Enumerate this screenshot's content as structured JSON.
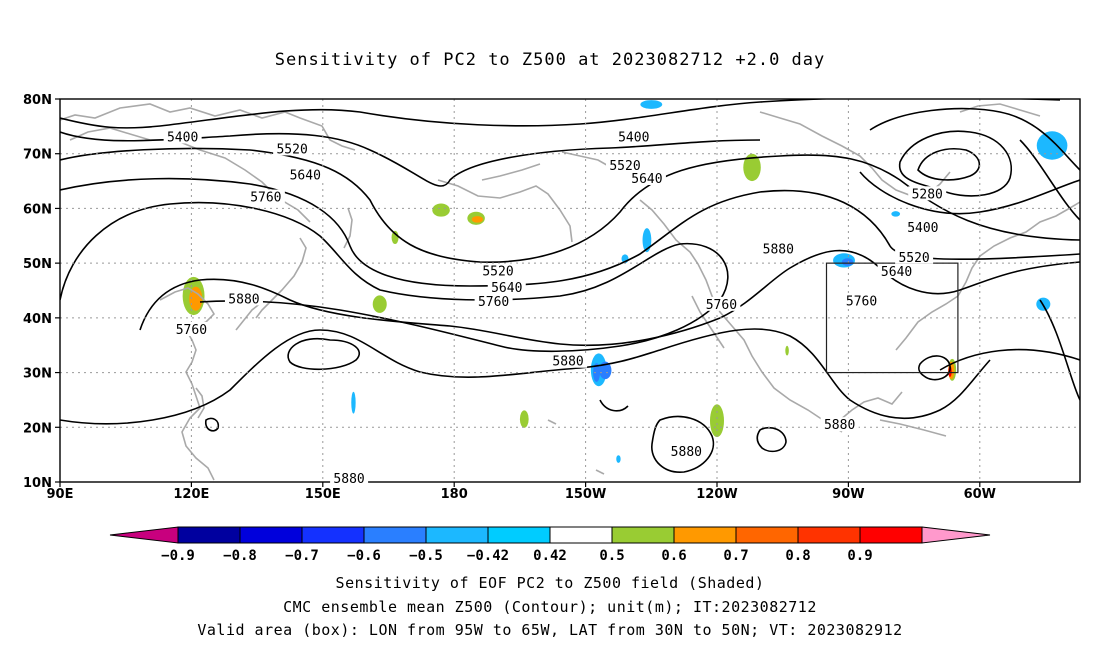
{
  "title": "Sensitivity of PC2 to Z500 at 2023082712 +2.0 day",
  "axes": {
    "lat_ticks": [
      "80N",
      "70N",
      "60N",
      "50N",
      "40N",
      "30N",
      "20N",
      "10N"
    ],
    "lon_ticks": [
      "90E",
      "120E",
      "150E",
      "180",
      "150W",
      "120W",
      "90W",
      "60W"
    ]
  },
  "contour_labels": [
    {
      "value": "5400",
      "lon": 118,
      "lat": 72.8
    },
    {
      "value": "5400",
      "lon": 221,
      "lat": 72.8
    },
    {
      "value": "5520",
      "lon": 143,
      "lat": 70.6
    },
    {
      "value": "5520",
      "lon": 219,
      "lat": 67.6
    },
    {
      "value": "5640",
      "lon": 146,
      "lat": 65.8
    },
    {
      "value": "5640",
      "lon": 224,
      "lat": 65.2
    },
    {
      "value": "5760",
      "lon": 137,
      "lat": 61.8
    },
    {
      "value": "5520",
      "lon": 190,
      "lat": 48.3
    },
    {
      "value": "5640",
      "lon": 192,
      "lat": 45.3
    },
    {
      "value": "5760",
      "lon": 189,
      "lat": 42.7
    },
    {
      "value": "5880",
      "lon": 132,
      "lat": 43.2
    },
    {
      "value": "5760",
      "lon": 120,
      "lat": 37.6
    },
    {
      "value": "5760",
      "lon": 241,
      "lat": 42.2
    },
    {
      "value": "5880",
      "lon": 254,
      "lat": 52.3
    },
    {
      "value": "5880",
      "lon": 206,
      "lat": 31.8
    },
    {
      "value": "5280",
      "lon": 288,
      "lat": 62.4
    },
    {
      "value": "5400",
      "lon": 287,
      "lat": 56.2
    },
    {
      "value": "5520",
      "lon": 285,
      "lat": 50.8
    },
    {
      "value": "5640",
      "lon": 281,
      "lat": 48.2
    },
    {
      "value": "5760",
      "lon": 273,
      "lat": 42.8
    },
    {
      "value": "5880",
      "lon": 268,
      "lat": 20.2
    },
    {
      "value": "5880",
      "lon": 233,
      "lat": 15.3
    },
    {
      "value": "5880",
      "lon": 156,
      "lat": 10.4
    }
  ],
  "valid_box": {
    "lon_min": 265,
    "lon_max": 295,
    "lat_min": 30,
    "lat_max": 50
  },
  "colorbar": {
    "labels": [
      "-0.9",
      "-0.8",
      "-0.7",
      "-0.6",
      "-0.5",
      "-0.42",
      "0.42",
      "0.5",
      "0.6",
      "0.7",
      "0.8",
      "0.9"
    ],
    "colors": [
      "#c8007e",
      "#00009f",
      "#0000dc",
      "#1431ff",
      "#2a7fff",
      "#1cb8ff",
      "#00ccff",
      "#ffffff",
      "#99cc33",
      "#ff9900",
      "#ff6600",
      "#ff3300",
      "#ff0000",
      "#ff99cc"
    ]
  },
  "captions": [
    "Sensitivity of EOF PC2 to Z500 field (Shaded)",
    "CMC ensemble mean Z500 (Contour); unit(m); IT:2023082712",
    "Valid area (box): LON from 95W to 65W, LAT from 30N to 50N; VT: 2023082912"
  ],
  "shading_blobs": [
    {
      "lon": 120.5,
      "lat": 44.0,
      "rx": 2.5,
      "ry": 3.5,
      "color": "#99cc33"
    },
    {
      "lon": 121.0,
      "lat": 43.5,
      "rx": 1.5,
      "ry": 2.2,
      "color": "#ff9900"
    },
    {
      "lon": 163.0,
      "lat": 42.5,
      "rx": 1.6,
      "ry": 1.6,
      "color": "#99cc33"
    },
    {
      "lon": 166.5,
      "lat": 54.7,
      "rx": 0.8,
      "ry": 1.2,
      "color": "#99cc33"
    },
    {
      "lon": 177.0,
      "lat": 59.7,
      "rx": 2.0,
      "ry": 1.2,
      "color": "#99cc33"
    },
    {
      "lon": 185.0,
      "lat": 58.2,
      "rx": 2.0,
      "ry": 1.2,
      "color": "#99cc33"
    },
    {
      "lon": 185.3,
      "lat": 58.0,
      "rx": 1.3,
      "ry": 0.6,
      "color": "#ff9900"
    },
    {
      "lon": 225.0,
      "lat": 79.0,
      "rx": 2.5,
      "ry": 0.8,
      "color": "#1cb8ff"
    },
    {
      "lon": 224.0,
      "lat": 54.2,
      "rx": 1.0,
      "ry": 2.2,
      "color": "#1cb8ff"
    },
    {
      "lon": 219.0,
      "lat": 50.8,
      "rx": 0.8,
      "ry": 0.8,
      "color": "#1cb8ff"
    },
    {
      "lon": 213.0,
      "lat": 30.5,
      "rx": 1.8,
      "ry": 3.0,
      "color": "#1cb8ff"
    },
    {
      "lon": 212.5,
      "lat": 30.0,
      "rx": 0.8,
      "ry": 1.7,
      "color": "#2a7fff"
    },
    {
      "lon": 214.5,
      "lat": 30.4,
      "rx": 1.4,
      "ry": 1.6,
      "color": "#2a7fff"
    },
    {
      "lon": 196.0,
      "lat": 21.5,
      "rx": 1.0,
      "ry": 1.6,
      "color": "#99cc33"
    },
    {
      "lon": 157.0,
      "lat": 24.5,
      "rx": 0.5,
      "ry": 2.0,
      "color": "#1cb8ff"
    },
    {
      "lon": 248.0,
      "lat": 67.5,
      "rx": 2.0,
      "ry": 2.5,
      "color": "#99cc33"
    },
    {
      "lon": 240.0,
      "lat": 21.2,
      "rx": 1.6,
      "ry": 3.0,
      "color": "#99cc33"
    },
    {
      "lon": 217.5,
      "lat": 14.2,
      "rx": 0.5,
      "ry": 0.7,
      "color": "#1cb8ff"
    },
    {
      "lon": 269.0,
      "lat": 50.5,
      "rx": 2.5,
      "ry": 1.3,
      "color": "#1cb8ff"
    },
    {
      "lon": 269.8,
      "lat": 50.2,
      "rx": 1.3,
      "ry": 0.7,
      "color": "#2a7fff"
    },
    {
      "lon": 293.7,
      "lat": 30.5,
      "rx": 0.9,
      "ry": 2.0,
      "color": "#99cc33"
    },
    {
      "lon": 293.5,
      "lat": 30.4,
      "rx": 0.7,
      "ry": 1.6,
      "color": "#ff9900"
    },
    {
      "lon": 293.2,
      "lat": 30.2,
      "rx": 0.4,
      "ry": 1.0,
      "color": "#ff0000"
    },
    {
      "lon": 316.5,
      "lat": 71.5,
      "rx": 3.5,
      "ry": 2.6,
      "color": "#1cb8ff"
    },
    {
      "lon": 314.5,
      "lat": 42.5,
      "rx": 1.6,
      "ry": 1.2,
      "color": "#1cb8ff"
    },
    {
      "lon": 256.0,
      "lat": 34.0,
      "rx": 0.4,
      "ry": 0.9,
      "color": "#99cc33"
    },
    {
      "lon": 280.8,
      "lat": 59.0,
      "rx": 1.0,
      "ry": 0.5,
      "color": "#1cb8ff"
    }
  ]
}
